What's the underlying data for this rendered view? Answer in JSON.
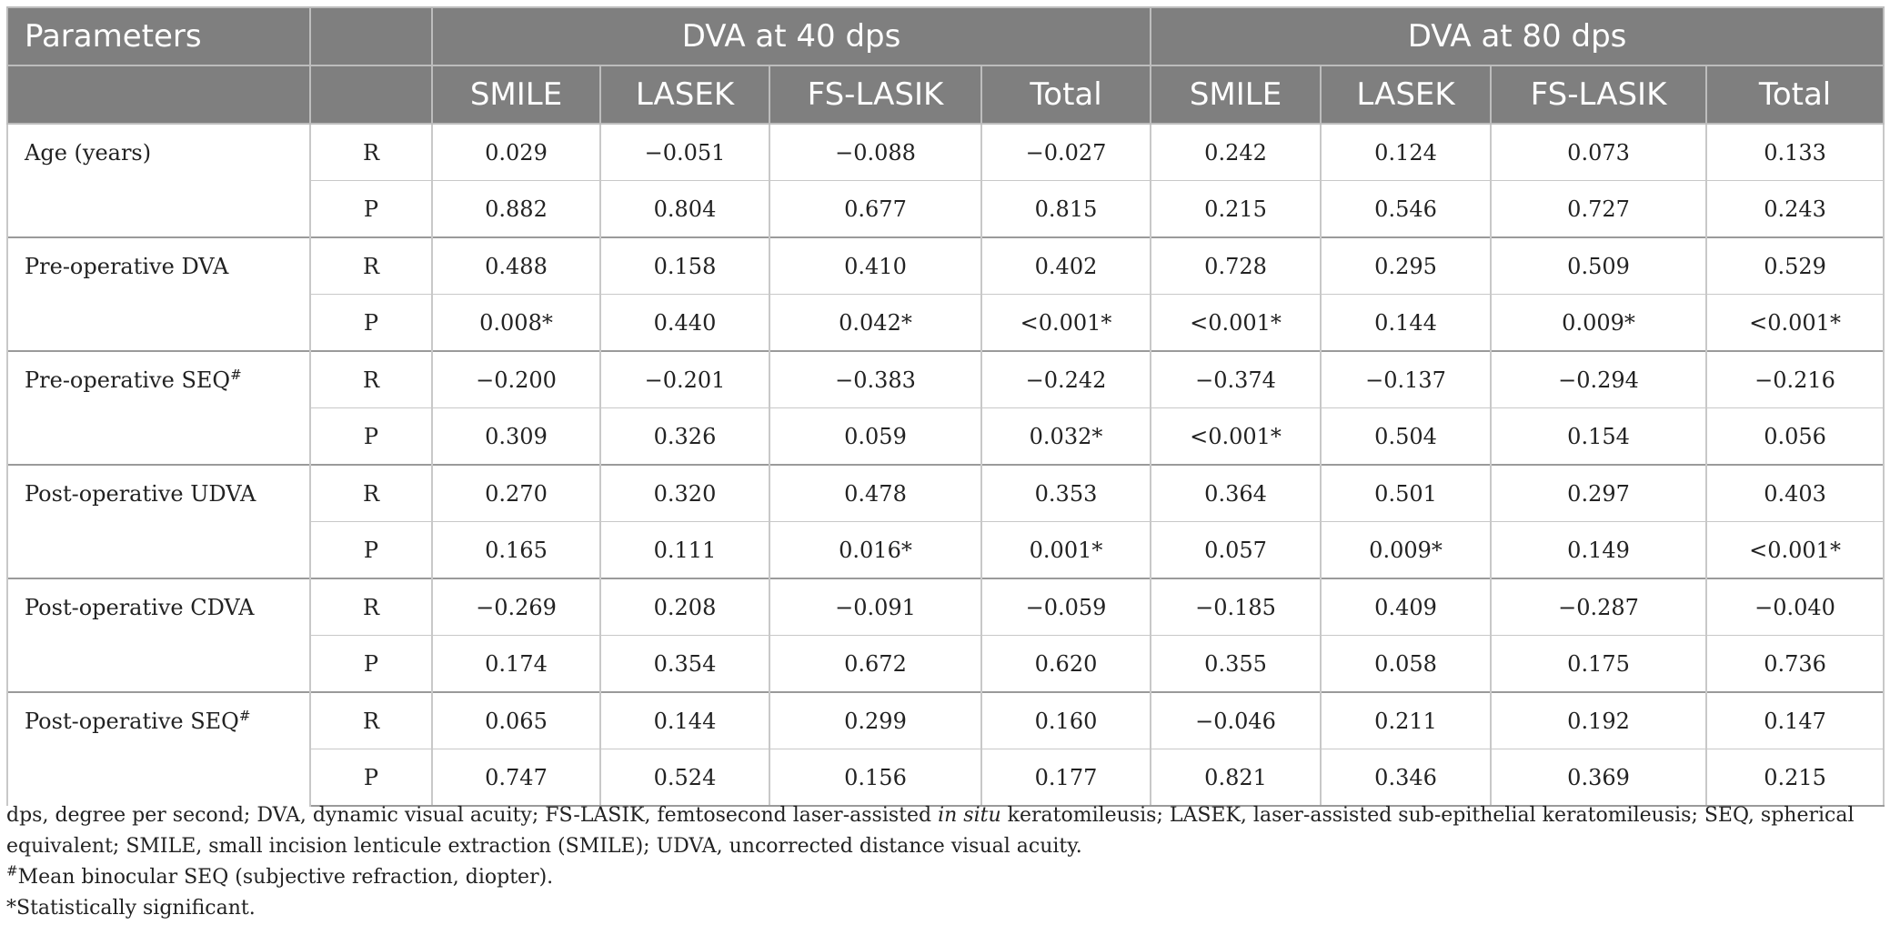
{
  "header": {
    "parameters_label": "Parameters",
    "group_40": "DVA at 40 dps",
    "group_80": "DVA at 80 dps",
    "subcolumns": [
      "SMILE",
      "LASEK",
      "FS-LASIK",
      "Total",
      "SMILE",
      "LASEK",
      "FS-LASIK",
      "Total"
    ]
  },
  "rows": [
    {
      "parameter": "Age (years)",
      "sup": "",
      "r_label": "R",
      "r_values": [
        "0.029",
        "−0.051",
        "−0.088",
        "−0.027",
        "0.242",
        "0.124",
        "0.073",
        "0.133"
      ],
      "p_label": "P",
      "p_values": [
        "0.882",
        "0.804",
        "0.677",
        "0.815",
        "0.215",
        "0.546",
        "0.727",
        "0.243"
      ]
    },
    {
      "parameter": "Pre-operative DVA",
      "sup": "",
      "r_label": "R",
      "r_values": [
        "0.488",
        "0.158",
        "0.410",
        "0.402",
        "0.728",
        "0.295",
        "0.509",
        "0.529"
      ],
      "p_label": "P",
      "p_values": [
        "0.008*",
        "0.440",
        "0.042*",
        "<0.001*",
        "<0.001*",
        "0.144",
        "0.009*",
        "<0.001*"
      ]
    },
    {
      "parameter": "Pre-operative SEQ",
      "sup": "#",
      "r_label": "R",
      "r_values": [
        "−0.200",
        "−0.201",
        "−0.383",
        "−0.242",
        "−0.374",
        "−0.137",
        "−0.294",
        "−0.216"
      ],
      "p_label": "P",
      "p_values": [
        "0.309",
        "0.326",
        "0.059",
        "0.032*",
        "<0.001*",
        "0.504",
        "0.154",
        "0.056"
      ]
    },
    {
      "parameter": "Post-operative UDVA",
      "sup": "",
      "r_label": "R",
      "r_values": [
        "0.270",
        "0.320",
        "0.478",
        "0.353",
        "0.364",
        "0.501",
        "0.297",
        "0.403"
      ],
      "p_label": "P",
      "p_values": [
        "0.165",
        "0.111",
        "0.016*",
        "0.001*",
        "0.057",
        "0.009*",
        "0.149",
        "<0.001*"
      ]
    },
    {
      "parameter": "Post-operative CDVA",
      "sup": "",
      "r_label": "R",
      "r_values": [
        "−0.269",
        "0.208",
        "−0.091",
        "−0.059",
        "−0.185",
        "0.409",
        "−0.287",
        "−0.040"
      ],
      "p_label": "P",
      "p_values": [
        "0.174",
        "0.354",
        "0.672",
        "0.620",
        "0.355",
        "0.058",
        "0.175",
        "0.736"
      ]
    },
    {
      "parameter": "Post-operative SEQ",
      "sup": "#",
      "r_label": "R",
      "r_values": [
        "0.065",
        "0.144",
        "0.299",
        "0.160",
        "−0.046",
        "0.211",
        "0.192",
        "0.147"
      ],
      "p_label": "P",
      "p_values": [
        "0.747",
        "0.524",
        "0.156",
        "0.177",
        "0.821",
        "0.346",
        "0.369",
        "0.215"
      ]
    }
  ],
  "footnotes": {
    "abbrev_part1": "dps, degree per second; DVA, dynamic visual acuity; FS-LASIK, femtosecond laser-assisted ",
    "abbrev_italic": "in situ",
    "abbrev_part2": " keratomileusis; LASEK, laser-assisted sub-epithelial keratomileusis; SEQ, spherical equivalent; SMILE, small incision lenticule extraction (SMILE); UDVA, uncorrected distance visual acuity.",
    "hash_symbol": "#",
    "hash_note": "Mean binocular SEQ (subjective refraction, diopter).",
    "star_note": "*Statistically significant."
  }
}
